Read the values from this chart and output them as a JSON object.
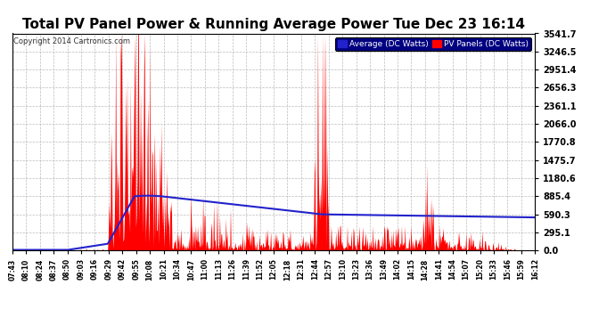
{
  "title": "Total PV Panel Power & Running Average Power Tue Dec 23 16:14",
  "copyright": "Copyright 2014 Cartronics.com",
  "legend_blue": "Average (DC Watts)",
  "legend_red": "PV Panels (DC Watts)",
  "yticks": [
    0.0,
    295.1,
    590.3,
    885.4,
    1180.6,
    1475.7,
    1770.8,
    2066.0,
    2361.1,
    2656.3,
    2951.4,
    3246.5,
    3541.7
  ],
  "xtick_labels": [
    "07:43",
    "08:10",
    "08:24",
    "08:37",
    "08:50",
    "09:03",
    "09:16",
    "09:29",
    "09:42",
    "09:55",
    "10:08",
    "10:21",
    "10:34",
    "10:47",
    "11:00",
    "11:13",
    "11:26",
    "11:39",
    "11:52",
    "12:05",
    "12:18",
    "12:31",
    "12:44",
    "12:57",
    "13:10",
    "13:23",
    "13:36",
    "13:49",
    "14:02",
    "14:15",
    "14:28",
    "14:41",
    "14:54",
    "15:07",
    "15:20",
    "15:33",
    "15:46",
    "15:59",
    "16:12"
  ],
  "bg_color": "#ffffff",
  "plot_bg_color": "#ffffff",
  "grid_color": "#aaaaaa",
  "title_color": "#000000",
  "red_color": "#ff0000",
  "blue_color": "#2222cc",
  "title_fontsize": 11,
  "ymax": 3541.7,
  "ymin": 0.0
}
